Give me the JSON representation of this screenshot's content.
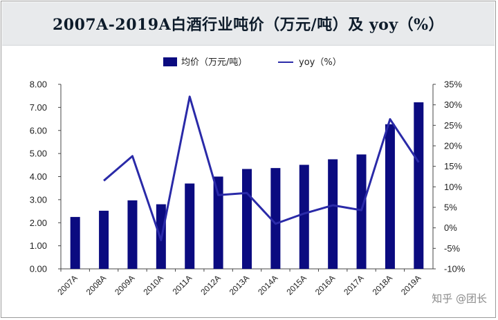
{
  "title": "2007A-2019A白酒行业吨价（万元/吨）及 yoy（%）",
  "watermark": "知乎 @团长",
  "colors": {
    "bar": "#0b0b80",
    "line": "#2a2aa8",
    "title_bg": "#e8eaec"
  },
  "chart_data": {
    "type": "bar+line",
    "categories": [
      "2007A",
      "2008A",
      "2009A",
      "2010A",
      "2011A",
      "2012A",
      "2013A",
      "2014A",
      "2015A",
      "2016A",
      "2017A",
      "2018A",
      "2019A"
    ],
    "series": [
      {
        "name": "均价（万元/吨）",
        "type": "bar",
        "axis": "left",
        "values": [
          2.25,
          2.52,
          2.97,
          2.8,
          3.7,
          4.0,
          4.33,
          4.37,
          4.51,
          4.75,
          4.96,
          6.27,
          7.22
        ]
      },
      {
        "name": "yoy（%）",
        "type": "line",
        "axis": "right",
        "values": [
          null,
          11.5,
          17.5,
          -3.0,
          32.0,
          8.0,
          8.5,
          1.0,
          3.5,
          5.5,
          4.3,
          26.5,
          16.0
        ]
      }
    ],
    "y_left": {
      "min": 0,
      "max": 8,
      "ticks": [
        "0.00",
        "1.00",
        "2.00",
        "3.00",
        "4.00",
        "5.00",
        "6.00",
        "7.00",
        "8.00"
      ]
    },
    "y_right": {
      "min": -10,
      "max": 35,
      "ticks": [
        "-10%",
        "-5%",
        "0%",
        "5%",
        "10%",
        "15%",
        "20%",
        "25%",
        "30%",
        "35%"
      ]
    },
    "legend": {
      "position": "top-center",
      "items": [
        "均价（万元/吨）",
        "yoy（%）"
      ]
    },
    "grid": false
  }
}
